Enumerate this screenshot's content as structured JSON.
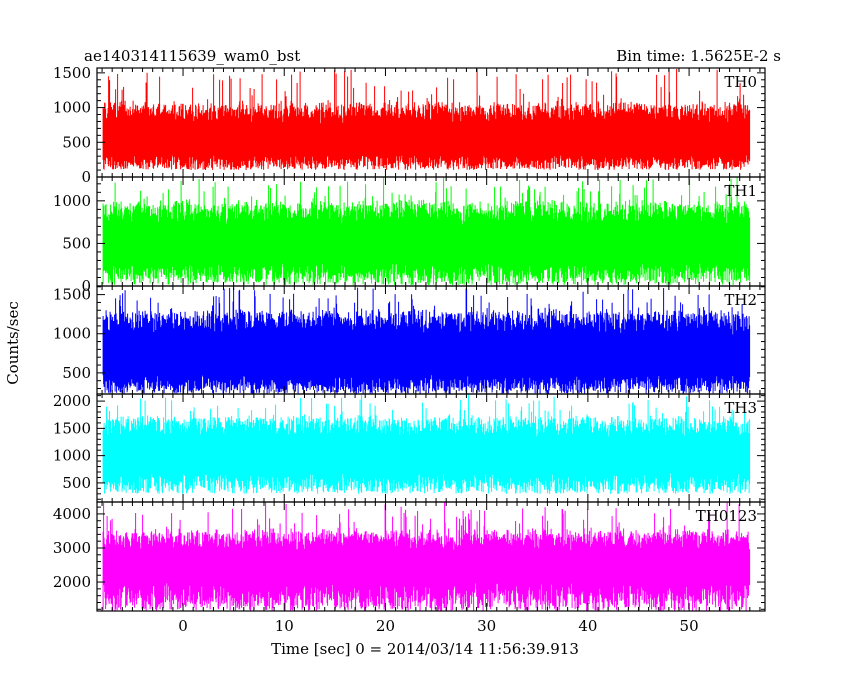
{
  "chart_data": {
    "type": "line",
    "title": "ae140314115639_wam0_bst",
    "subtitle": "Bin time: 1.5625E-2 s",
    "xlabel": "Time [sec] 0 = 2014/03/14 11:56:39.913",
    "ylabel": "Counts/sec",
    "xlim": [
      -8.5,
      57.5
    ],
    "x_ticks": [
      0,
      10,
      20,
      30,
      40,
      50
    ],
    "data_x_range": [
      -7.9,
      56.0
    ],
    "grid": false,
    "panels": [
      {
        "name": "TH0",
        "color": "#ff0000",
        "ylim": [
          0,
          1570
        ],
        "y_ticks": [
          0,
          500,
          1000,
          1500
        ],
        "signal_range": [
          100,
          1570
        ],
        "typical_range": [
          300,
          1000
        ]
      },
      {
        "name": "TH1",
        "color": "#00ff00",
        "ylim": [
          0,
          1280
        ],
        "y_ticks": [
          0,
          500,
          1000
        ],
        "signal_range": [
          10,
          1280
        ],
        "typical_range": [
          250,
          950
        ]
      },
      {
        "name": "TH2",
        "color": "#0000ff",
        "ylim": [
          230,
          1610
        ],
        "y_ticks": [
          500,
          1000,
          1500
        ],
        "signal_range": [
          230,
          1610
        ],
        "typical_range": [
          450,
          1250
        ]
      },
      {
        "name": "TH3",
        "color": "#00ffff",
        "ylim": [
          150,
          2130
        ],
        "y_ticks": [
          500,
          1000,
          1500,
          2000
        ],
        "signal_range": [
          300,
          2130
        ],
        "typical_range": [
          650,
          1650
        ]
      },
      {
        "name": "TH0123",
        "color": "#ff00ff",
        "ylim": [
          1150,
          4350
        ],
        "y_ticks": [
          2000,
          3000,
          4000
        ],
        "signal_range": [
          1150,
          4350
        ],
        "typical_range": [
          1900,
          3400
        ]
      }
    ]
  }
}
